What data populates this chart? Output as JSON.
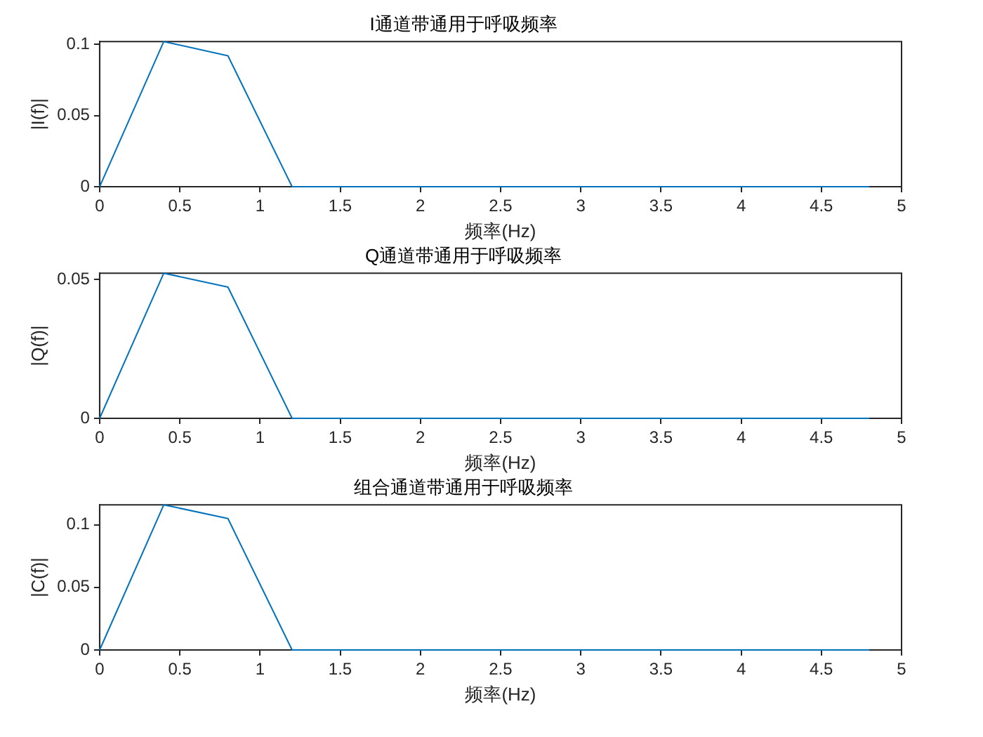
{
  "chart_data": [
    {
      "type": "line",
      "title": "I通道带通用于呼吸频率",
      "xlabel": "频率(Hz)",
      "ylabel": "|I(f)|",
      "x": [
        0,
        0.4,
        0.8,
        1.2,
        1.6,
        2.0,
        2.4,
        2.8,
        3.2,
        3.6,
        4.0,
        4.4,
        4.8
      ],
      "series": [
        {
          "color": "#0072bd",
          "values": [
            0,
            0.102,
            0.092,
            0,
            0,
            0,
            0,
            0,
            0,
            0,
            0,
            0,
            0
          ]
        }
      ],
      "xlim": [
        0,
        5
      ],
      "xticks": [
        0,
        0.5,
        1,
        1.5,
        2,
        2.5,
        3,
        3.5,
        4,
        4.5,
        5
      ],
      "ylim": [
        0,
        0.102
      ],
      "yticks": [
        0,
        0.05,
        0.1
      ],
      "grid": false,
      "legend": false
    },
    {
      "type": "line",
      "title": "Q通道带通用于呼吸频率",
      "xlabel": "频率(Hz)",
      "ylabel": "|Q(f)|",
      "x": [
        0,
        0.4,
        0.8,
        1.2,
        1.6,
        2.0,
        2.4,
        2.8,
        3.2,
        3.6,
        4.0,
        4.4,
        4.8
      ],
      "series": [
        {
          "color": "#0072bd",
          "values": [
            0,
            0.0523,
            0.0473,
            0,
            0,
            0,
            0,
            0,
            0,
            0,
            0,
            0,
            0
          ]
        }
      ],
      "xlim": [
        0,
        5
      ],
      "xticks": [
        0,
        0.5,
        1,
        1.5,
        2,
        2.5,
        3,
        3.5,
        4,
        4.5,
        5
      ],
      "ylim": [
        0,
        0.0523
      ],
      "yticks": [
        0,
        0.05
      ],
      "grid": false,
      "legend": false
    },
    {
      "type": "line",
      "title": "组合通道带通用于呼吸频率",
      "xlabel": "频率(Hz)",
      "ylabel": "|C(f)|",
      "x": [
        0,
        0.4,
        0.8,
        1.2,
        1.6,
        2.0,
        2.4,
        2.8,
        3.2,
        3.6,
        4.0,
        4.4,
        4.8
      ],
      "series": [
        {
          "color": "#0072bd",
          "values": [
            0,
            0.116,
            0.105,
            0,
            0,
            0,
            0,
            0,
            0,
            0,
            0,
            0,
            0
          ]
        }
      ],
      "xlim": [
        0,
        5
      ],
      "xticks": [
        0,
        0.5,
        1,
        1.5,
        2,
        2.5,
        3,
        3.5,
        4,
        4.5,
        5
      ],
      "ylim": [
        0,
        0.116
      ],
      "yticks": [
        0,
        0.05,
        0.1
      ],
      "grid": false,
      "legend": false
    }
  ]
}
